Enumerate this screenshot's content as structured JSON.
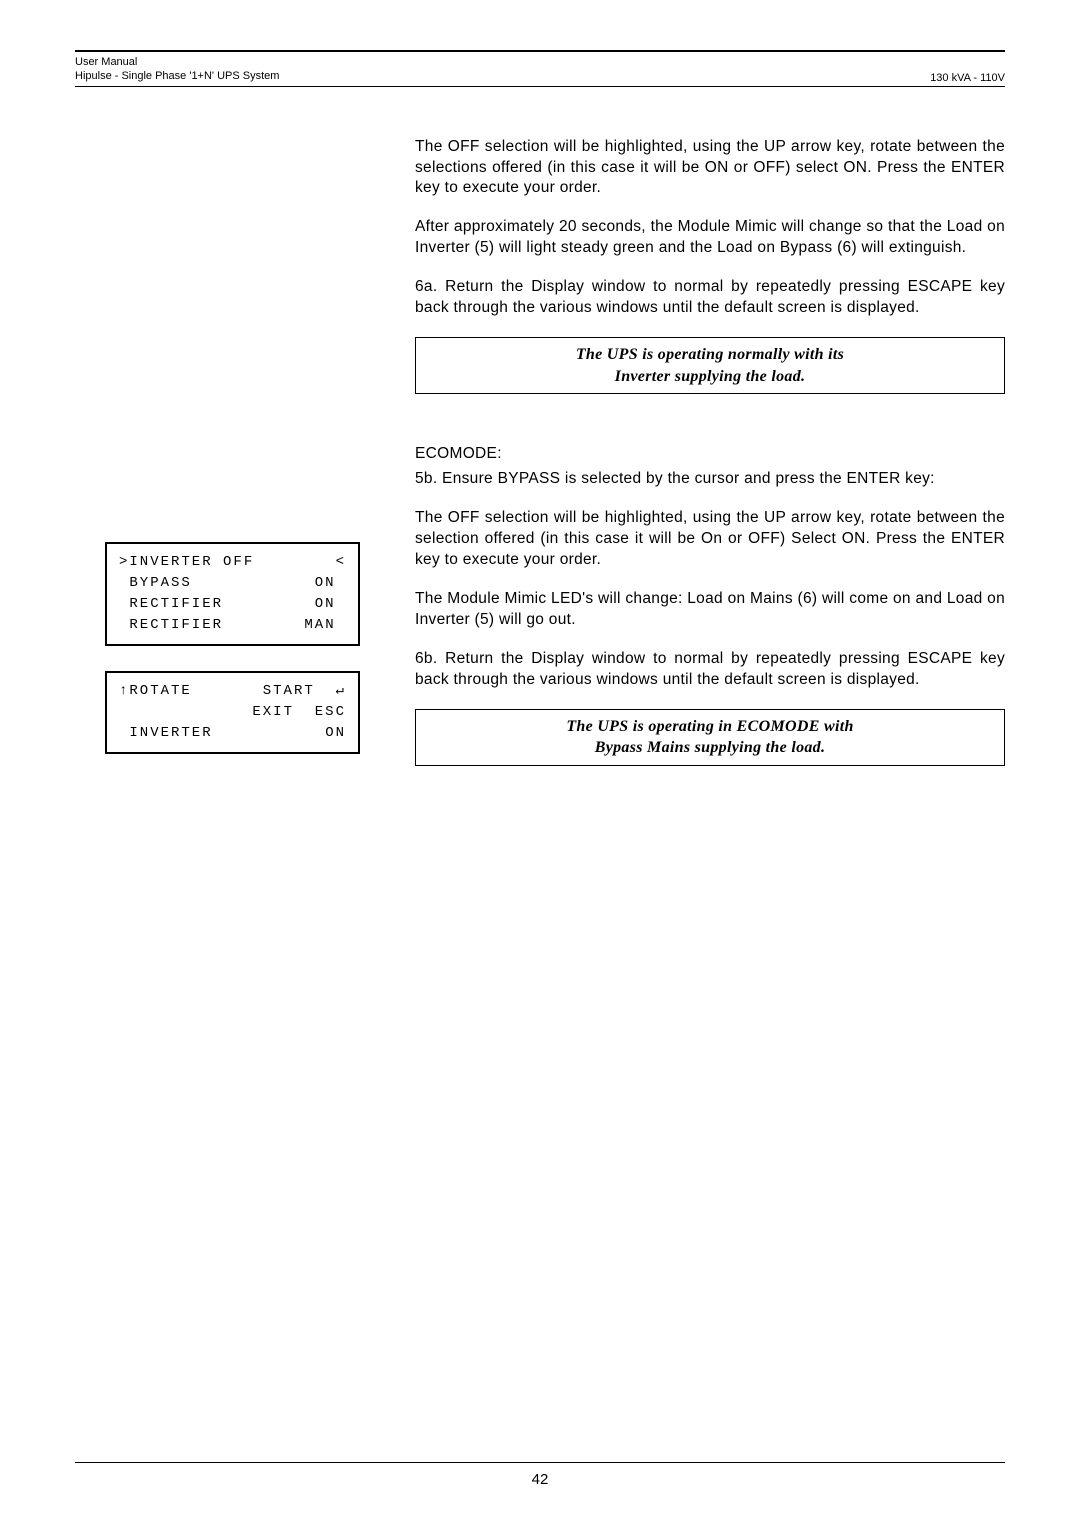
{
  "header": {
    "line1": "User Manual",
    "line2": "Hipulse - Single Phase '1+N' UPS System",
    "right": "130 kVA - 110V"
  },
  "paragraphs": {
    "p1": "The OFF selection will be highlighted, using the UP arrow key, rotate between the selections offered (in this case it will be ON or OFF) select ON. Press the ENTER key to execute your order.",
    "p2": "After approximately 20 seconds, the Module Mimic will change so that the Load on Inverter (5) will light steady green and the Load on Bypass (6) will extinguish.",
    "p3": "6a. Return the Display window to normal by repeatedly pressing ESCAPE key back through the various windows until the default screen is displayed.",
    "notice1_line1": "The UPS is operating normally with its",
    "notice1_line2": "Inverter supplying the load.",
    "ecomode_header": "ECOMODE:",
    "p4": "5b. Ensure BYPASS is selected by the cursor and press the ENTER key:",
    "p5": "The OFF selection will be highlighted, using the UP arrow key, rotate between the selection offered (in this case it will be On or OFF) Select ON. Press the ENTER key to execute your order.",
    "p6": "The Module Mimic  LED's will change:  Load on Mains (6) will come on and Load on Inverter (5) will go out.",
    "p7": "6b. Return the Display window to normal by repeatedly pressing ESCAPE key back through the various windows until the default screen is displayed.",
    "notice2_line1": "The UPS is operating in ECOMODE with",
    "notice2_line2": "Bypass Mains supplying the load."
  },
  "display_box1": {
    "row1_left": ">INVERTER OFF",
    "row1_right": "<",
    "row2_left": " BYPASS",
    "row2_right": "ON ",
    "row3_left": " RECTIFIER",
    "row3_right": "ON ",
    "row4_left": " RECTIFIER",
    "row4_right": "MAN "
  },
  "display_box2": {
    "row1_left": "↑ROTATE",
    "row1_right": "START  ↵",
    "row2_left": "",
    "row2_right": "EXIT  ESC",
    "row3_left": " INVERTER",
    "row3_right": "ON",
    "row4_left": "",
    "row4_right": ""
  },
  "footer": {
    "page_number": "42"
  }
}
